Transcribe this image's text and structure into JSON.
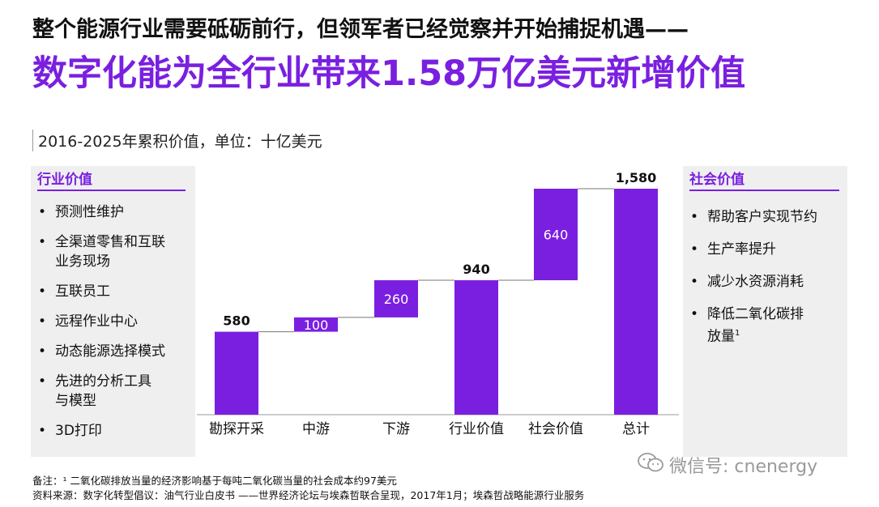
{
  "title_line1": "整个能源行业需要砥砺前行，但领军者已经觉察并开始捕捉机遇——",
  "title_line2": "数字化能为全行业带来1.58万亿美元新增价值",
  "left_panel": {
    "heading": "行业价值",
    "items": [
      {
        "l1": "预测性维护",
        "l2": ""
      },
      {
        "l1": "全渠道零售和互联",
        "l2": "业务现场"
      },
      {
        "l1": "互联员工",
        "l2": ""
      },
      {
        "l1": "远程作业中心",
        "l2": ""
      },
      {
        "l1": "动态能源选择模式",
        "l2": ""
      },
      {
        "l1": "先进的分析工具",
        "l2": "与模型"
      },
      {
        "l1": "3D打印",
        "l2": ""
      }
    ]
  },
  "right_panel": {
    "heading": "社会价值",
    "items": [
      {
        "l1": "帮助客户实现节约",
        "l2": ""
      },
      {
        "l1": "生产率提升",
        "l2": ""
      },
      {
        "l1": "减少水资源消耗",
        "l2": ""
      },
      {
        "l1": "降低二氧化碳排",
        "l2": "放量",
        "sup": "1"
      }
    ]
  },
  "chart_data": {
    "type": "bar",
    "subtype": "waterfall",
    "subtitle": "2016-2025年累积价值，单位：十亿美元",
    "categories": [
      "勘探开采",
      "中游",
      "下游",
      "行业价值",
      "社会价值",
      "总计"
    ],
    "bars": [
      {
        "label": "580",
        "start": 0,
        "end": 580,
        "label_pos": "above"
      },
      {
        "label": "100",
        "start": 580,
        "end": 680,
        "label_pos": "inside"
      },
      {
        "label": "260",
        "start": 680,
        "end": 940,
        "label_pos": "inside"
      },
      {
        "label": "940",
        "start": 0,
        "end": 940,
        "label_pos": "above"
      },
      {
        "label": "640",
        "start": 940,
        "end": 1580,
        "label_pos": "inside"
      },
      {
        "label": "1,580",
        "start": 0,
        "end": 1580,
        "label_pos": "above"
      }
    ],
    "bar_color": "#7a1fe0",
    "ylim": [
      0,
      1580
    ],
    "legend": "none"
  },
  "notes": {
    "line1": "备注：¹ 二氧化碳排放当量的经济影响基于每吨二氧化碳当量的社会成本约97美元",
    "line2": "资料来源：数字化转型倡议：油气行业白皮书 ——世界经济论坛与埃森哲联合呈现，2017年1月；埃森哲战略能源行业服务"
  },
  "watermark": "微信号: cnenergy"
}
